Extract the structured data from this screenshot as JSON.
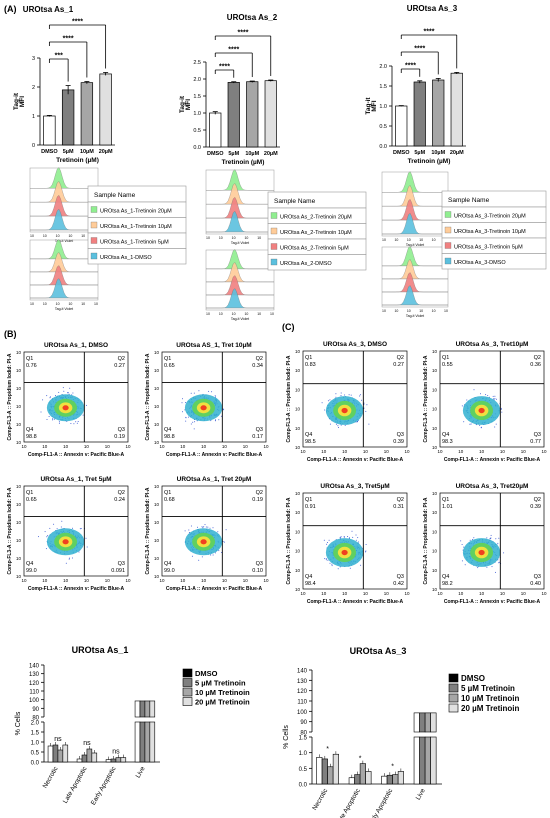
{
  "panel_labels": [
    "(A)",
    "(B)",
    "(C)"
  ],
  "colors": {
    "bar_dmso": "#ffffff",
    "bar_5": "#7f7f7f",
    "bar_10": "#a6a6a6",
    "bar_20": "#e0e0e0",
    "hist_20": "#90ee90",
    "hist_10": "#ffcc99",
    "hist_5": "#f08080",
    "hist_dmso": "#5bc0de",
    "quad_line": "#000000"
  },
  "chart_data": [
    {
      "id": "tagit_as1",
      "type": "bar",
      "title": "UROtsa As_1",
      "xlabel": "Tretinoin (µM)",
      "ylabel": "Tag-it\nMFI",
      "categories": [
        "DMSO",
        "5µM",
        "10µM",
        "20µM"
      ],
      "values": [
        1.0,
        1.9,
        2.15,
        2.45
      ],
      "errors": [
        0.02,
        0.15,
        0.04,
        0.05
      ],
      "ylim": [
        0,
        3
      ],
      "yticks": [
        "0",
        "1",
        "2",
        "3"
      ],
      "significance": [
        "***",
        "****",
        "****"
      ]
    },
    {
      "id": "tagit_as2",
      "type": "bar",
      "title": "UROtsa As_2",
      "xlabel": "Tretinoin (µM)",
      "ylabel": "Tag-it\nMFI",
      "categories": [
        "DMSO",
        "5µM",
        "10µM",
        "20µM"
      ],
      "values": [
        1.0,
        1.9,
        1.92,
        1.95
      ],
      "errors": [
        0.04,
        0.02,
        0.02,
        0.02
      ],
      "ylim": [
        0,
        2.5
      ],
      "yticks": [
        "0.0",
        "0.5",
        "1.0",
        "1.5",
        "2.0",
        "2.5"
      ],
      "significance": [
        "****",
        "****",
        "****"
      ]
    },
    {
      "id": "tagit_as3",
      "type": "bar",
      "title": "UROtsa As_3",
      "xlabel": "Tretinoin (µM)",
      "ylabel": "Tag-it\nMFI",
      "categories": [
        "DMSO",
        "5µM",
        "10µM",
        "20µM"
      ],
      "values": [
        1.0,
        1.6,
        1.65,
        1.82
      ],
      "errors": [
        0.01,
        0.03,
        0.04,
        0.02
      ],
      "ylim": [
        0,
        2.0
      ],
      "yticks": [
        "0.0",
        "0.5",
        "1.0",
        "1.5",
        "2.0"
      ],
      "significance": [
        "****",
        "****",
        "****"
      ]
    },
    {
      "id": "apop_as1",
      "type": "bar",
      "title": "UROtsa As_1",
      "ylabel": "% Cells",
      "categories": [
        "Necrotic",
        "Late Apoptotic",
        "Early Apoptotic",
        "Live"
      ],
      "yticks": [
        "0.0",
        "0.5",
        "1.0",
        "1.5",
        "2.0",
        "80",
        "90",
        "100",
        "110",
        "120",
        "130",
        "140"
      ],
      "series": [
        {
          "name": "DMSO",
          "values": [
            0.8,
            0.15,
            0.12,
            98.5
          ]
        },
        {
          "name": "5 µM Tretinoin",
          "values": [
            0.85,
            0.35,
            0.15,
            98.5
          ]
        },
        {
          "name": "10 µM Tretinoin",
          "values": [
            0.6,
            0.65,
            0.22,
            98.5
          ]
        },
        {
          "name": "20 µM Tretinoin",
          "values": [
            0.85,
            0.45,
            0.22,
            98.5
          ]
        }
      ],
      "annotations": [
        "ns",
        "ns",
        "ns"
      ]
    },
    {
      "id": "apop_as3",
      "type": "bar",
      "title": "UROtsa As_3",
      "ylabel": "% Cells",
      "categories": [
        "Necrotic",
        "Late Apoptotic",
        "Early Apoptotic",
        "Live"
      ],
      "yticks": [
        "0.0",
        "0.5",
        "1.0",
        "1.5",
        "80",
        "90",
        "100",
        "110",
        "120",
        "130",
        "140"
      ],
      "series": [
        {
          "name": "DMSO",
          "values": [
            0.85,
            0.2,
            0.25,
            98.5
          ]
        },
        {
          "name": "5 µM Tretinoin",
          "values": [
            0.8,
            0.3,
            0.28,
            98.5
          ]
        },
        {
          "name": "10 µM Tretinoin",
          "values": [
            0.55,
            0.65,
            0.3,
            98.5
          ]
        },
        {
          "name": "20 µM Tretinoin",
          "values": [
            0.95,
            0.4,
            0.4,
            98.5
          ]
        }
      ],
      "annotations": [
        "*",
        "*",
        "*"
      ]
    }
  ],
  "histogram_legends": [
    {
      "header": "Sample Name",
      "items": [
        "UROtsa As_1-Tretinoin 20µM",
        "UROtsa As_1-Tretinoin 10µM",
        "UROtsa As_1-Tretinoin 5µM",
        "UROtsa As_1-DMSO"
      ]
    },
    {
      "header": "Sample Name",
      "items": [
        "UROtsa As_2-Tretinoin 20µM",
        "UROtsa As_2-Tretinoin 10µM",
        "UROtsa As_2-Tretinoin 5µM",
        "UROtsa As_2-DMSO"
      ]
    },
    {
      "header": "Sample Name",
      "items": [
        "UROtsa As_3-Tretinoin 20µM",
        "UROtsa As_3-Tretinoin 10µM",
        "UROtsa As_3-Tretinoin 5µM",
        "UROtsa As_3-DMSO"
      ]
    }
  ],
  "histogram_xlabel": "Tag-it Violet",
  "scatter_plots": [
    {
      "title": "UROtsa As_1, DMSO",
      "q1": "0.76",
      "q2": "0.27",
      "q3": "0.19",
      "q4": "98.8"
    },
    {
      "title": "UROtsa AS_1, Tret 10µM",
      "q1": "0.65",
      "q2": "0.34",
      "q3": "0.17",
      "q4": "98.8"
    },
    {
      "title": "UROtsa As_3, DMSO",
      "q1": "0.83",
      "q2": "0.27",
      "q3": "0.39",
      "q4": "98.5"
    },
    {
      "title": "UROtsa As_3, Tret10µM",
      "q1": "0.55",
      "q2": "0.36",
      "q3": "0.77",
      "q4": "98.3"
    },
    {
      "title": "UROtsa As_1, Tret 5µM",
      "q1": "0.65",
      "q2": "0.24",
      "q3": "0.091",
      "q4": "99.0"
    },
    {
      "title": "UROtsa As_1, Tret 20µM",
      "q1": "0.68",
      "q2": "0.19",
      "q3": "0.10",
      "q4": "99.0"
    },
    {
      "title": "UROtsa As_3, Tret5µM",
      "q1": "0.91",
      "q2": "0.31",
      "q3": "0.42",
      "q4": "98.4"
    },
    {
      "title": "UROtsa As_3, Tret20µM",
      "q1": "1.01",
      "q2": "0.39",
      "q3": "0.40",
      "q4": "98.2"
    }
  ],
  "scatter_xlabel": "Comp-FL1-A :: Annexin v: Pacific Blue-A",
  "scatter_ylabel": "Comp-FL3-A :: Propidium Iodid: PI-A",
  "quadrant_names": [
    "Q1",
    "Q2",
    "Q3",
    "Q4"
  ],
  "scatter_ticks": [
    "10",
    "10",
    "10",
    "10",
    "10",
    "10"
  ]
}
